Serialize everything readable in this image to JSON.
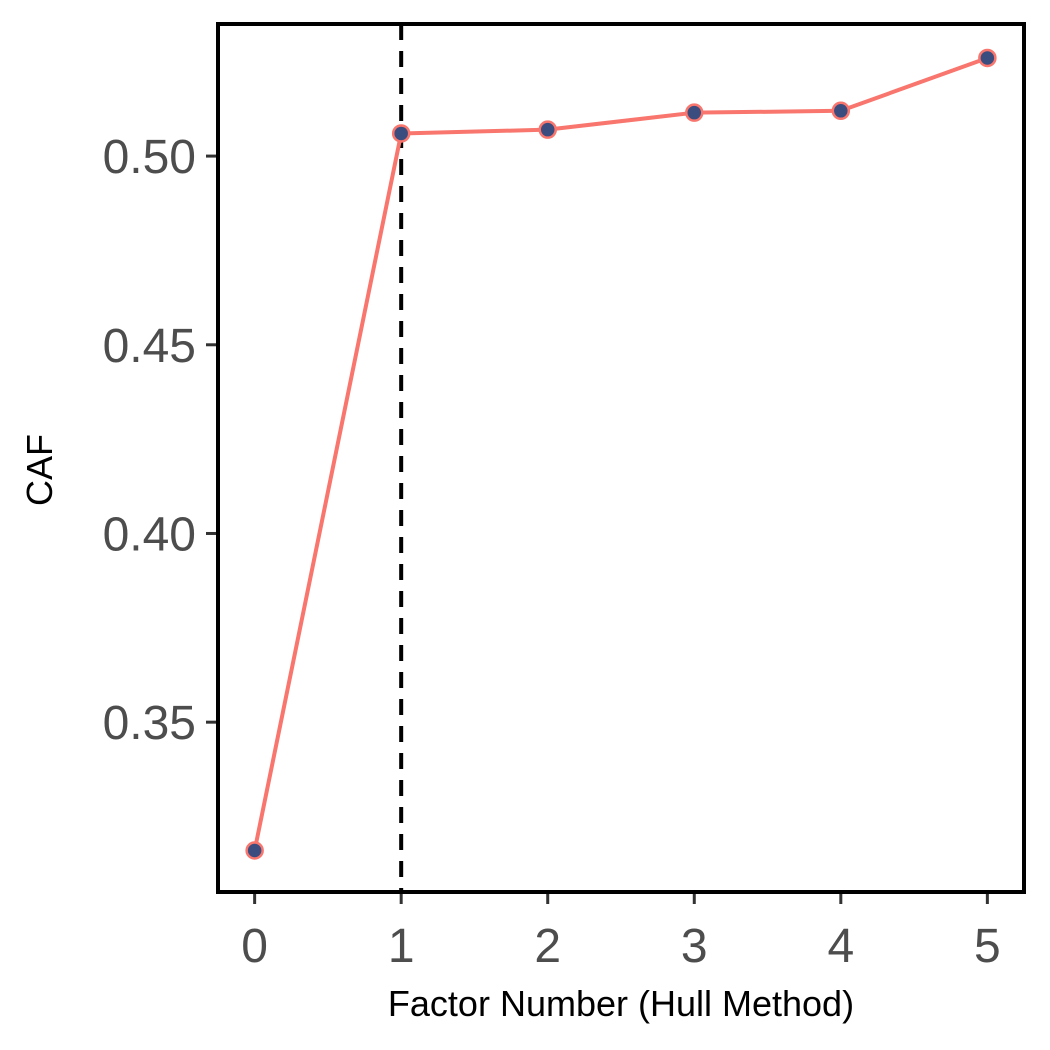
{
  "chart_data": {
    "type": "line",
    "title": "",
    "xlabel": "Factor Number (Hull Method)",
    "ylabel": "CAF",
    "x": [
      0,
      1,
      2,
      3,
      4,
      5
    ],
    "series": [
      {
        "values": [
          0.316,
          0.506,
          0.507,
          0.5115,
          0.512,
          0.526
        ]
      }
    ],
    "xticks": [
      "0",
      "1",
      "2",
      "3",
      "4",
      "5"
    ],
    "yticks": [
      "0.35",
      "0.40",
      "0.45",
      "0.50"
    ],
    "ytick_values": [
      0.35,
      0.4,
      0.45,
      0.5
    ],
    "xlim": [
      -0.25,
      5.25
    ],
    "ylim": [
      0.305,
      0.535
    ],
    "reference_line": {
      "x": 1,
      "style": "dashed"
    },
    "grid": false,
    "legend": "none",
    "colors": {
      "line": "#F8766D",
      "point_fill": "#3B4C7E",
      "point_stroke": "#F8766D",
      "reference_line": "#000000"
    }
  }
}
